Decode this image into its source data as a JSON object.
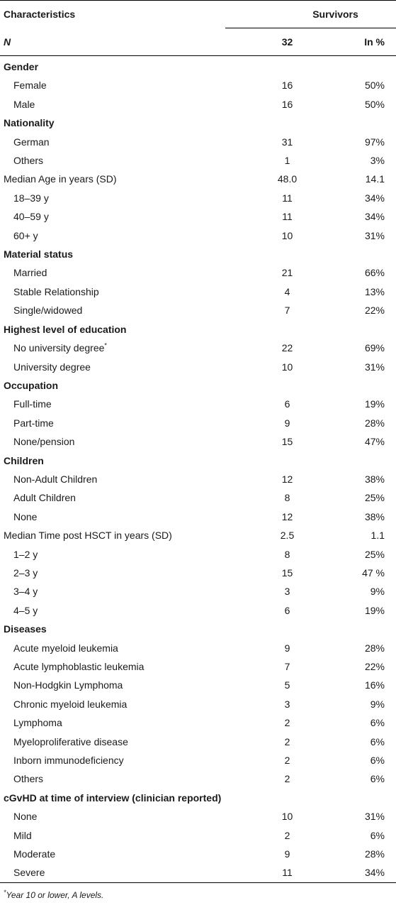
{
  "header": {
    "characteristics": "Characteristics",
    "survivors": "Survivors",
    "n_label": "N",
    "n_value": "32",
    "percent_label": "In %"
  },
  "rows": [
    {
      "type": "section",
      "label": "Gender"
    },
    {
      "type": "item",
      "label": "Female",
      "n": "16",
      "pct": "50%"
    },
    {
      "type": "item",
      "label": "Male",
      "n": "16",
      "pct": "50%"
    },
    {
      "type": "section",
      "label": "Nationality"
    },
    {
      "type": "item",
      "label": "German",
      "n": "31",
      "pct": "97%"
    },
    {
      "type": "item",
      "label": "Others",
      "n": "1",
      "pct": "3%"
    },
    {
      "type": "plain",
      "label": "Median Age in years (SD)",
      "n": "48.0",
      "pct": "14.1"
    },
    {
      "type": "item",
      "label": "18–39 y",
      "n": "11",
      "pct": "34%"
    },
    {
      "type": "item",
      "label": "40–59 y",
      "n": "11",
      "pct": "34%"
    },
    {
      "type": "item",
      "label": "60+ y",
      "n": "10",
      "pct": "31%"
    },
    {
      "type": "section",
      "label": "Material status"
    },
    {
      "type": "item",
      "label": "Married",
      "n": "21",
      "pct": "66%"
    },
    {
      "type": "item",
      "label": "Stable Relationship",
      "n": "4",
      "pct": "13%"
    },
    {
      "type": "item",
      "label": "Single/widowed",
      "n": "7",
      "pct": "22%"
    },
    {
      "type": "section",
      "label": "Highest level of education"
    },
    {
      "type": "item",
      "label": "No university degree",
      "sup": "*",
      "n": "22",
      "pct": "69%"
    },
    {
      "type": "item",
      "label": "University degree",
      "n": "10",
      "pct": "31%"
    },
    {
      "type": "section",
      "label": "Occupation"
    },
    {
      "type": "item",
      "label": "Full-time",
      "n": "6",
      "pct": "19%"
    },
    {
      "type": "item",
      "label": "Part-time",
      "n": "9",
      "pct": "28%"
    },
    {
      "type": "item",
      "label": "None/pension",
      "n": "15",
      "pct": "47%"
    },
    {
      "type": "section",
      "label": "Children"
    },
    {
      "type": "item",
      "label": "Non-Adult Children",
      "n": "12",
      "pct": "38%"
    },
    {
      "type": "item",
      "label": "Adult Children",
      "n": "8",
      "pct": "25%"
    },
    {
      "type": "item",
      "label": "None",
      "n": "12",
      "pct": "38%"
    },
    {
      "type": "plain",
      "label": "Median Time post HSCT in years (SD)",
      "n": "2.5",
      "pct": "1.1"
    },
    {
      "type": "item",
      "label": "1–2 y",
      "n": "8",
      "pct": "25%"
    },
    {
      "type": "item",
      "label": "2–3 y",
      "n": "15",
      "pct": "47 %"
    },
    {
      "type": "item",
      "label": "3–4 y",
      "n": "3",
      "pct": "9%"
    },
    {
      "type": "item",
      "label": "4–5 y",
      "n": "6",
      "pct": "19%"
    },
    {
      "type": "section",
      "label": "Diseases"
    },
    {
      "type": "item",
      "label": "Acute myeloid leukemia",
      "n": "9",
      "pct": "28%"
    },
    {
      "type": "item",
      "label": "Acute lymphoblastic leukemia",
      "n": "7",
      "pct": "22%"
    },
    {
      "type": "item",
      "label": "Non-Hodgkin Lymphoma",
      "n": "5",
      "pct": "16%"
    },
    {
      "type": "item",
      "label": "Chronic myeloid leukemia",
      "n": "3",
      "pct": "9%"
    },
    {
      "type": "item",
      "label": "Lymphoma",
      "n": "2",
      "pct": "6%"
    },
    {
      "type": "item",
      "label": "Myeloproliferative disease",
      "n": "2",
      "pct": "6%"
    },
    {
      "type": "item",
      "label": "Inborn immunodeficiency",
      "n": "2",
      "pct": "6%"
    },
    {
      "type": "item",
      "label": "Others",
      "n": "2",
      "pct": "6%"
    },
    {
      "type": "section",
      "label": "cGvHD at time of interview (clinician reported)"
    },
    {
      "type": "item",
      "label": "None",
      "n": "10",
      "pct": "31%"
    },
    {
      "type": "item",
      "label": "Mild",
      "n": "2",
      "pct": "6%"
    },
    {
      "type": "item",
      "label": "Moderate",
      "n": "9",
      "pct": "28%"
    },
    {
      "type": "item",
      "label": "Severe",
      "n": "11",
      "pct": "34%"
    }
  ],
  "footnote": {
    "marker": "*",
    "text": "Year 10 or lower, A levels."
  }
}
